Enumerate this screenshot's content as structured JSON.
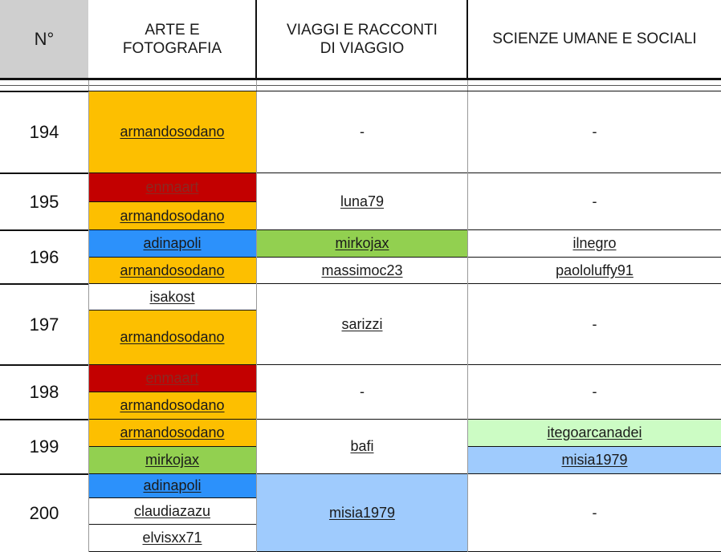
{
  "header": {
    "num": "N°",
    "col1": [
      "ARTE E",
      "FOTOGRAFIA"
    ],
    "col2": [
      "VIAGGI E RACCONTI",
      "DI VIAGGIO"
    ],
    "col3": "SCIENZE UMANE E SOCIALI"
  },
  "colors": {
    "orange": "#fdbf00",
    "red": "#c30000",
    "blue": "#2c91fb",
    "green": "#92d050",
    "lightgreen": "#ccfcc4",
    "lightblue": "#9fcbfd",
    "white": "#ffffff"
  },
  "rows": [
    {
      "num": "194",
      "arte": [
        {
          "text": "armandosodano",
          "color": "orange"
        }
      ],
      "viaggi": [
        {
          "text": "-",
          "color": "white"
        }
      ],
      "scienze": [
        {
          "text": "-",
          "color": "white"
        }
      ]
    },
    {
      "num": "195",
      "arte": [
        {
          "text": "enmaart",
          "color": "red"
        },
        {
          "text": "armandosodano",
          "color": "orange"
        }
      ],
      "viaggi": [
        {
          "text": "luna79",
          "color": "white"
        }
      ],
      "scienze": [
        {
          "text": "-",
          "color": "white"
        }
      ]
    },
    {
      "num": "196",
      "arte": [
        {
          "text": "adinapoli",
          "color": "blue"
        },
        {
          "text": "armandosodano",
          "color": "orange"
        }
      ],
      "viaggi": [
        {
          "text": "mirkojax",
          "color": "green"
        },
        {
          "text": "massimoc23",
          "color": "white"
        }
      ],
      "scienze": [
        {
          "text": "ilnegro",
          "color": "white"
        },
        {
          "text": "paololuffy91",
          "color": "white"
        }
      ]
    },
    {
      "num": "197",
      "arte": [
        {
          "text": "isakost",
          "color": "white"
        },
        {
          "text": "armandosodano",
          "color": "orange"
        }
      ],
      "viaggi": [
        {
          "text": "sarizzi",
          "color": "white"
        }
      ],
      "scienze": [
        {
          "text": "-",
          "color": "white"
        }
      ]
    },
    {
      "num": "198",
      "arte": [
        {
          "text": "enmaart",
          "color": "red"
        },
        {
          "text": "armandosodano",
          "color": "orange"
        }
      ],
      "viaggi": [
        {
          "text": "-",
          "color": "white"
        }
      ],
      "scienze": [
        {
          "text": "-",
          "color": "white"
        }
      ]
    },
    {
      "num": "199",
      "arte": [
        {
          "text": "armandosodano",
          "color": "orange"
        },
        {
          "text": "mirkojax",
          "color": "green"
        }
      ],
      "viaggi": [
        {
          "text": "bafi",
          "color": "white"
        }
      ],
      "scienze": [
        {
          "text": "itegoarcanadei",
          "color": "lightgreen"
        },
        {
          "text": "misia1979",
          "color": "lightblue"
        }
      ]
    },
    {
      "num": "200",
      "arte": [
        {
          "text": "adinapoli",
          "color": "blue"
        },
        {
          "text": "claudiazazu",
          "color": "white"
        },
        {
          "text": "elvisxx71",
          "color": "white"
        }
      ],
      "viaggi": [
        {
          "text": "misia1979",
          "color": "lightblue"
        }
      ],
      "scienze": [
        {
          "text": "-",
          "color": "white"
        }
      ]
    }
  ]
}
